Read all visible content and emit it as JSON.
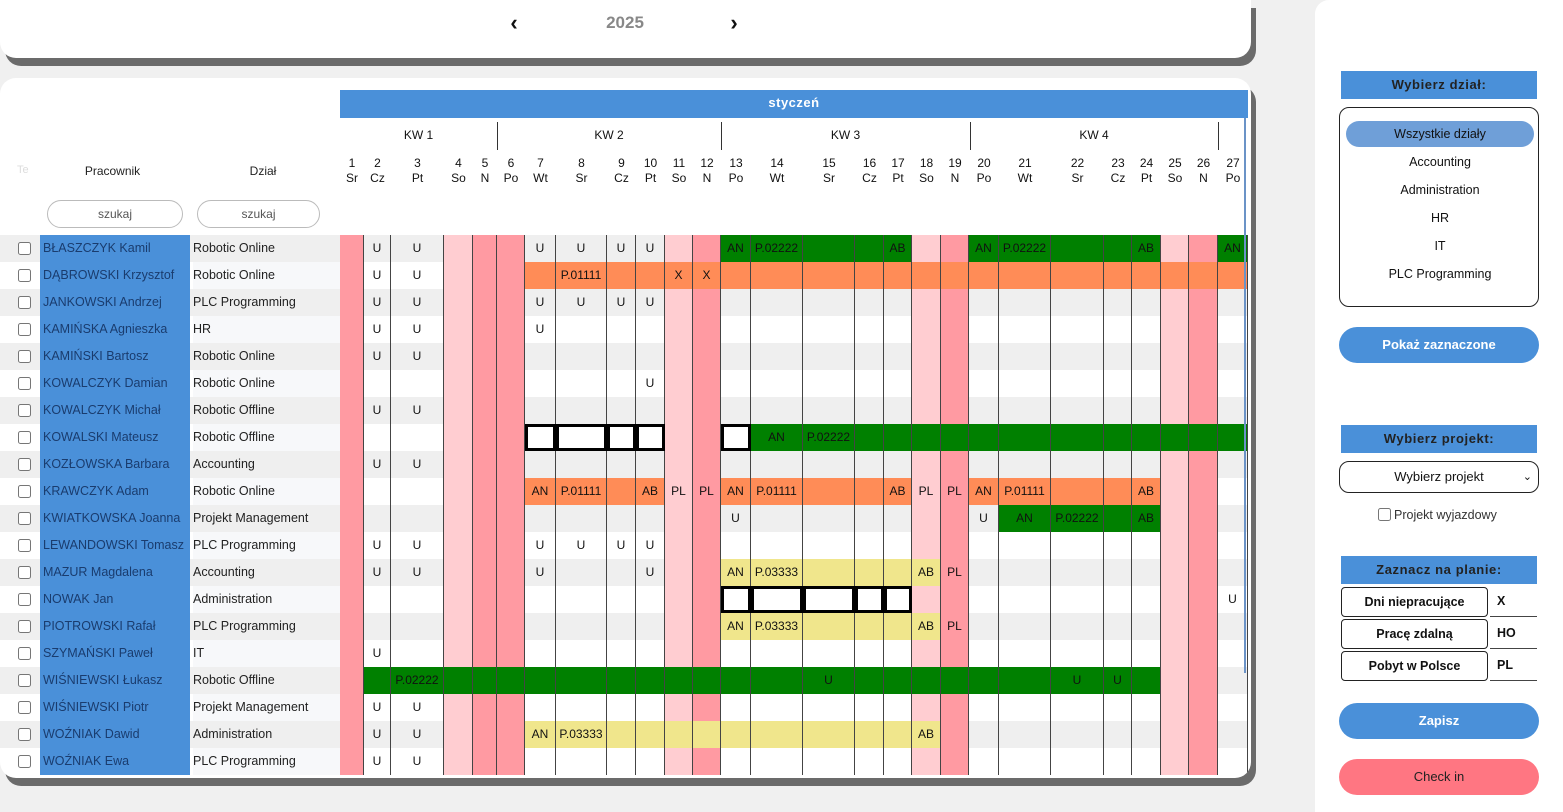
{
  "year": {
    "prev_icon": "‹",
    "value": "2025",
    "next_icon": "›"
  },
  "plan": {
    "month": "styczeń",
    "weeks": [
      "KW 1",
      "KW 2",
      "KW 3",
      "KW 4"
    ],
    "headers": {
      "th": "Te",
      "employee": "Pracownik",
      "department": "Dział"
    },
    "search_placeholder_employee": "szukaj",
    "search_placeholder_department": "szukaj",
    "days": [
      {
        "n": "1",
        "d": "Sr"
      },
      {
        "n": "2",
        "d": "Cz"
      },
      {
        "n": "3",
        "d": "Pt"
      },
      {
        "n": "4",
        "d": "So"
      },
      {
        "n": "5",
        "d": "N"
      },
      {
        "n": "6",
        "d": "Po"
      },
      {
        "n": "7",
        "d": "Wt"
      },
      {
        "n": "8",
        "d": "Sr"
      },
      {
        "n": "9",
        "d": "Cz"
      },
      {
        "n": "10",
        "d": "Pt"
      },
      {
        "n": "11",
        "d": "So"
      },
      {
        "n": "12",
        "d": "N"
      },
      {
        "n": "13",
        "d": "Po"
      },
      {
        "n": "14",
        "d": "Wt"
      },
      {
        "n": "15",
        "d": "Sr"
      },
      {
        "n": "16",
        "d": "Cz"
      },
      {
        "n": "17",
        "d": "Pt"
      },
      {
        "n": "18",
        "d": "So"
      },
      {
        "n": "19",
        "d": "N"
      },
      {
        "n": "20",
        "d": "Po"
      },
      {
        "n": "21",
        "d": "Wt"
      },
      {
        "n": "22",
        "d": "Sr"
      },
      {
        "n": "23",
        "d": "Cz"
      },
      {
        "n": "24",
        "d": "Pt"
      },
      {
        "n": "25",
        "d": "So"
      },
      {
        "n": "26",
        "d": "N"
      },
      {
        "n": "27",
        "d": "Po"
      }
    ],
    "day_types": [
      "nd",
      "w",
      "w",
      "sat",
      "nd",
      "nd",
      "w",
      "w",
      "w",
      "w",
      "sat",
      "nd",
      "w",
      "w",
      "w",
      "w",
      "w",
      "sat",
      "nd",
      "w",
      "w",
      "w",
      "w",
      "w",
      "sat",
      "nd",
      "w"
    ],
    "colors": {
      "employee_col": "#4a90d9",
      "holiday": "#ff9aa2",
      "weekend": "#ffcdd1",
      "project_green": "#008000",
      "project_orange": "#ff8c57",
      "project_yellow": "#f0e68c"
    },
    "rows": [
      {
        "name": "BŁASZCZYK Kamil",
        "dept": "Robotic Online",
        "cells": {
          "2": "U",
          "3": "U",
          "7": "U",
          "8": "U",
          "9": "U",
          "10": "U",
          "13": "AN",
          "14": "P.02222",
          "17": "AB",
          "20": "AN",
          "21": "P.02222",
          "24": "AB",
          "27": "AN"
        },
        "fills": [
          {
            "c": "green",
            "from": 13,
            "to": 17
          },
          {
            "c": "green",
            "from": 20,
            "to": 24
          },
          {
            "c": "green",
            "from": 27,
            "to": 27
          }
        ]
      },
      {
        "name": "DĄBROWSKI Krzysztof",
        "dept": "Robotic Online",
        "cells": {
          "2": "U",
          "3": "U",
          "8": "P.01111",
          "11": "X",
          "12": "X"
        },
        "fills": [
          {
            "c": "orange",
            "from": 7,
            "to": 27
          }
        ]
      },
      {
        "name": "JANKOWSKI Andrzej",
        "dept": "PLC Programming",
        "cells": {
          "2": "U",
          "3": "U",
          "7": "U",
          "8": "U",
          "9": "U",
          "10": "U"
        },
        "fills": []
      },
      {
        "name": "KAMIŃSKA Agnieszka",
        "dept": "HR",
        "cells": {
          "2": "U",
          "3": "U",
          "7": "U"
        },
        "fills": []
      },
      {
        "name": "KAMIŃSKI Bartosz",
        "dept": "Robotic Online",
        "cells": {
          "2": "U",
          "3": "U"
        },
        "fills": []
      },
      {
        "name": "KOWALCZYK Damian",
        "dept": "Robotic Online",
        "cells": {
          "10": "U"
        },
        "fills": []
      },
      {
        "name": "KOWALCZYK Michał",
        "dept": "Robotic Offline",
        "cells": {
          "2": "U",
          "3": "U"
        },
        "fills": []
      },
      {
        "name": "KOWALSKI Mateusz",
        "dept": "Robotic Offline",
        "cells": {
          "14": "AN",
          "15": "P.02222"
        },
        "fills": [
          {
            "c": "box",
            "from": 7,
            "to": 10
          },
          {
            "c": "box",
            "from": 13,
            "to": 13
          },
          {
            "c": "green",
            "from": 14,
            "to": 27
          }
        ]
      },
      {
        "name": "KOZŁOWSKA Barbara",
        "dept": "Accounting",
        "cells": {
          "2": "U",
          "3": "U"
        },
        "fills": []
      },
      {
        "name": "KRAWCZYK Adam",
        "dept": "Robotic Online",
        "cells": {
          "7": "AN",
          "8": "P.01111",
          "10": "AB",
          "11": "PL",
          "12": "PL",
          "13": "AN",
          "14": "P.01111",
          "17": "AB",
          "18": "PL",
          "19": "PL",
          "20": "AN",
          "21": "P.01111",
          "24": "AB"
        },
        "fills": [
          {
            "c": "orange",
            "from": 7,
            "to": 10
          },
          {
            "c": "orange",
            "from": 13,
            "to": 17
          },
          {
            "c": "orange",
            "from": 20,
            "to": 24
          }
        ]
      },
      {
        "name": "KWIATKOWSKA Joanna",
        "dept": "Projekt Management",
        "cells": {
          "13": "U",
          "20": "U",
          "21": "AN",
          "22": "P.02222",
          "24": "AB"
        },
        "fills": [
          {
            "c": "green",
            "from": 21,
            "to": 24
          }
        ]
      },
      {
        "name": "LEWANDOWSKI Tomasz",
        "dept": "PLC Programming",
        "cells": {
          "2": "U",
          "3": "U",
          "7": "U",
          "8": "U",
          "9": "U",
          "10": "U"
        },
        "fills": []
      },
      {
        "name": "MAZUR Magdalena",
        "dept": "Accounting",
        "cells": {
          "2": "U",
          "3": "U",
          "7": "U",
          "10": "U",
          "13": "AN",
          "14": "P.03333",
          "18": "AB",
          "19": "PL"
        },
        "fills": [
          {
            "c": "yellow",
            "from": 13,
            "to": 18
          }
        ]
      },
      {
        "name": "NOWAK Jan",
        "dept": "Administration",
        "cells": {
          "27": "U"
        },
        "fills": [
          {
            "c": "box",
            "from": 13,
            "to": 17
          }
        ]
      },
      {
        "name": "PIOTROWSKI Rafał",
        "dept": "PLC Programming",
        "cells": {
          "13": "AN",
          "14": "P.03333",
          "18": "AB",
          "19": "PL"
        },
        "fills": [
          {
            "c": "yellow",
            "from": 13,
            "to": 18
          }
        ]
      },
      {
        "name": "SZYMAŃSKI Paweł",
        "dept": "IT",
        "cells": {
          "2": "U"
        },
        "fills": []
      },
      {
        "name": "WIŚNIEWSKI Łukasz",
        "dept": "Robotic Offline",
        "cells": {
          "3": "P.02222",
          "15": "U",
          "22": "U",
          "23": "U"
        },
        "fills": [
          {
            "c": "green",
            "from": 2,
            "to": 24
          }
        ]
      },
      {
        "name": "WIŚNIEWSKI Piotr",
        "dept": "Projekt Management",
        "cells": {
          "2": "U",
          "3": "U"
        },
        "fills": []
      },
      {
        "name": "WOŹNIAK Dawid",
        "dept": "Administration",
        "cells": {
          "2": "U",
          "3": "U",
          "7": "AN",
          "8": "P.03333",
          "18": "AB"
        },
        "fills": [
          {
            "c": "yellow",
            "from": 7,
            "to": 18
          }
        ]
      },
      {
        "name": "WOŹNIAK Ewa",
        "dept": "PLC Programming",
        "cells": {
          "2": "U",
          "3": "U"
        },
        "fills": []
      }
    ]
  },
  "sidebar": {
    "dept_header": "Wybierz dział:",
    "departments": [
      "Wszystkie działy",
      "Accounting",
      "Administration",
      "HR",
      "IT",
      "PLC Programming"
    ],
    "active_department": "Wszystkie działy",
    "show_selected": "Pokaż zaznaczone",
    "project_header": "Wybierz projekt:",
    "project_select": "Wybierz projekt",
    "project_chevron": "⌄",
    "trip_label": "Projekt wyjazdowy",
    "mark_header": "Zaznacz na planie:",
    "marks": [
      {
        "label": "Dni niepracujące",
        "code": "X"
      },
      {
        "label": "Pracę zdalną",
        "code": "HO"
      },
      {
        "label": "Pobyt w Polsce",
        "code": "PL"
      }
    ],
    "save": "Zapisz",
    "checkin": "Check in"
  }
}
